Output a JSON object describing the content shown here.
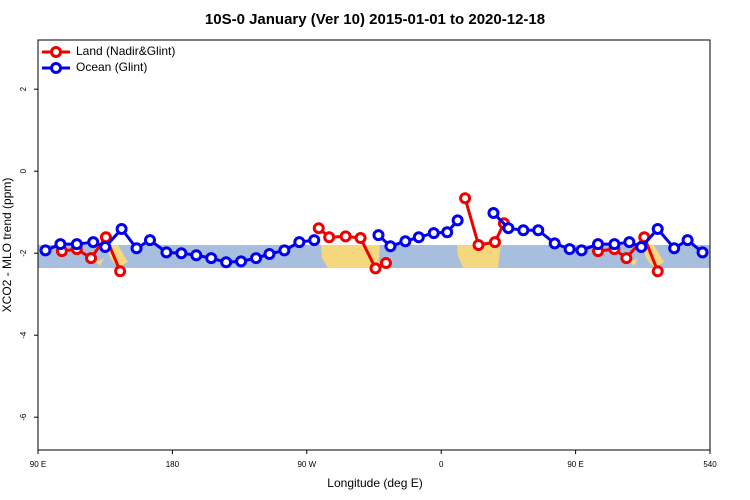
{
  "chart_data": {
    "type": "line",
    "title": "10S-0 January (Ver 10)   2015-01-01 to 2020-12-18",
    "x_label": "Longitude (deg E)",
    "y_label": "XCO2 - MLO trend (ppm)",
    "xlim": [
      90,
      540
    ],
    "ylim": [
      -6.8,
      3.2
    ],
    "xticks": [
      {
        "value": 90,
        "label": "90 E"
      },
      180,
      {
        "value": 270,
        "label": "90 W"
      },
      {
        "value": 360,
        "label": "0"
      },
      {
        "value": 450,
        "label": "90 E"
      },
      540
    ],
    "yticks": [
      -6,
      -4,
      -2,
      0,
      2
    ],
    "legend": "top-left",
    "series": [
      {
        "name": "Land (Nadir&Glint)",
        "color": "#ee0000",
        "x": [
          106,
          116,
          125.5,
          135.5,
          145,
          null,
          278,
          285,
          296,
          306,
          316,
          323,
          null,
          376,
          385,
          396,
          402,
          null,
          465,
          476,
          484,
          496,
          505
        ],
        "values": [
          -1.95,
          -1.9,
          -2.12,
          -1.61,
          -2.44,
          null,
          -1.39,
          -1.61,
          -1.59,
          -1.63,
          -2.37,
          -2.24,
          null,
          -0.66,
          -1.8,
          -1.73,
          -1.27,
          null,
          -1.95,
          -1.9,
          -2.12,
          -1.61,
          -2.44
        ]
      },
      {
        "name": "Ocean (Glint)",
        "color": "#0000ee",
        "x": [
          95,
          105,
          116,
          127,
          135,
          146,
          156,
          165,
          176,
          186,
          196,
          206,
          216,
          226,
          236,
          245,
          255,
          265,
          275,
          null,
          318,
          326,
          336,
          345,
          355,
          364,
          371,
          null,
          395,
          405,
          415,
          425,
          436,
          446,
          454,
          465,
          476,
          486,
          494,
          505,
          516,
          525,
          535
        ],
        "values": [
          -1.93,
          -1.78,
          -1.78,
          -1.73,
          -1.85,
          -1.41,
          -1.88,
          -1.68,
          -1.98,
          -2.0,
          -2.05,
          -2.12,
          -2.22,
          -2.2,
          -2.12,
          -2.02,
          -1.93,
          -1.73,
          -1.68,
          null,
          -1.56,
          -1.83,
          -1.71,
          -1.61,
          -1.51,
          -1.49,
          -1.2,
          null,
          -1.02,
          -1.39,
          -1.44,
          -1.44,
          -1.76,
          -1.9,
          -1.93,
          -1.78,
          -1.78,
          -1.73,
          -1.85,
          -1.41,
          -1.88,
          -1.68,
          -1.98
        ]
      }
    ]
  }
}
